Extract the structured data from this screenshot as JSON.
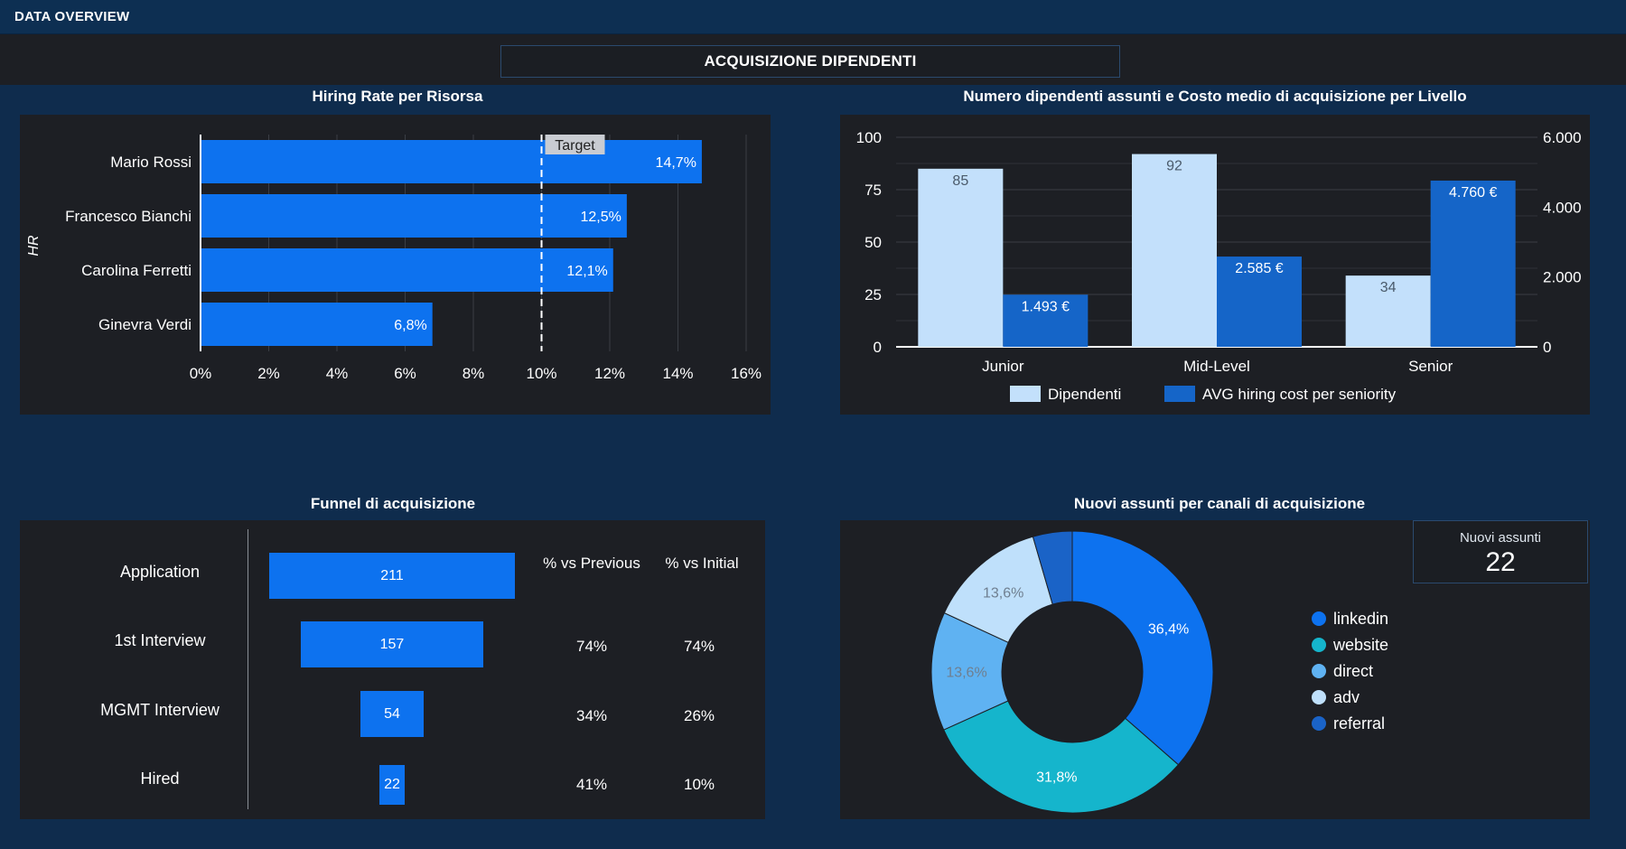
{
  "header": {
    "title": "DATA OVERVIEW"
  },
  "page_title": "ACQUISIZIONE DIPENDENTI",
  "hiring_rate": {
    "title": "Hiring Rate per Risorsa",
    "chart_data": {
      "type": "bar",
      "orientation": "horizontal",
      "ylabel": "HR",
      "categories": [
        "Mario Rossi",
        "Francesco Bianchi",
        "Carolina Ferretti",
        "Ginevra Verdi"
      ],
      "values": [
        14.7,
        12.5,
        12.1,
        6.8
      ],
      "value_labels": [
        "14,7%",
        "12,5%",
        "12,1%",
        "6,8%"
      ],
      "xlim": [
        0,
        16
      ],
      "xticks": [
        0,
        2,
        4,
        6,
        8,
        10,
        12,
        14,
        16
      ],
      "xtick_labels": [
        "0%",
        "2%",
        "4%",
        "6%",
        "8%",
        "10%",
        "12%",
        "14%",
        "16%"
      ],
      "target": {
        "value": 10,
        "label": "Target"
      },
      "color": "#0d72ef",
      "grid": true
    }
  },
  "hires_cost": {
    "title": "Numero dipendenti assunti e Costo medio di acquisizione per Livello",
    "chart_data": {
      "type": "bar",
      "categories": [
        "Junior",
        "Mid-Level",
        "Senior"
      ],
      "series": [
        {
          "name": "Dipendenti",
          "values": [
            85,
            92,
            34
          ],
          "labels": [
            "85",
            "92",
            "34"
          ],
          "color": "#c3e0fb",
          "axis": "left"
        },
        {
          "name": "AVG hiring cost per seniority",
          "values": [
            1493,
            2585,
            4760
          ],
          "labels": [
            "1.493 €",
            "2.585 €",
            "4.760 €"
          ],
          "color": "#1565c8",
          "axis": "right"
        }
      ],
      "ylim_left": [
        0,
        100
      ],
      "yticks_left": [
        "0",
        "25",
        "50",
        "75",
        "100"
      ],
      "ylim_right": [
        0,
        6000
      ],
      "yticks_right": [
        "0",
        "2.000",
        "4.000",
        "6.000"
      ],
      "legend": "bottom",
      "grid": true
    }
  },
  "funnel": {
    "title": "Funnel di acquisizione",
    "col_prev": "% vs Previous",
    "col_initial": "% vs Initial",
    "chart_data": {
      "type": "bar",
      "categories": [
        "Application",
        "1st Interview",
        "MGMT Interview",
        "Hired"
      ],
      "values": [
        211,
        157,
        54,
        22
      ],
      "pct_previous": [
        "",
        "74%",
        "34%",
        "41%"
      ],
      "pct_initial": [
        "",
        "74%",
        "26%",
        "10%"
      ]
    }
  },
  "channels": {
    "title": "Nuovi assunti per canali di acquisizione",
    "kpi_label": "Nuovi assunti",
    "kpi_value": "22",
    "chart_data": {
      "type": "pie",
      "donut": true,
      "categories": [
        "linkedin",
        "website",
        "direct",
        "adv",
        "referral"
      ],
      "values": [
        36.4,
        31.8,
        13.6,
        13.6,
        4.5
      ],
      "labels": [
        "36,4%",
        "31,8%",
        "13,6%",
        "13,6%",
        ""
      ],
      "colors": [
        "#0d72ef",
        "#15b5cc",
        "#5fb2f2",
        "#bfe0fb",
        "#1a63c7"
      ],
      "legend": "right"
    }
  }
}
